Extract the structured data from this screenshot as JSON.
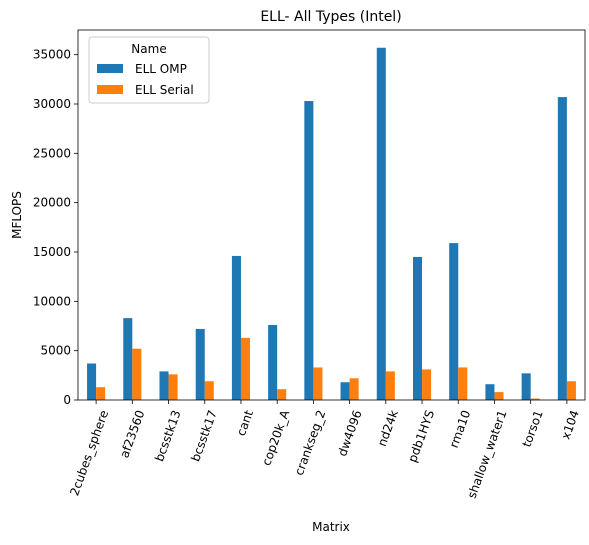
{
  "chart_data": {
    "type": "bar",
    "title": "ELL- All Types (Intel)",
    "xlabel": "Matrix",
    "ylabel": "MFLOPS",
    "ylim": [
      0,
      37500
    ],
    "yticks": [
      0,
      5000,
      10000,
      15000,
      20000,
      25000,
      30000,
      35000
    ],
    "grid": false,
    "legend": {
      "title": "Name",
      "placement": "top-left"
    },
    "categories": [
      "2cubes_sphere",
      "af23560",
      "bcsstk13",
      "bcsstk17",
      "cant",
      "cop20k_A",
      "crankseg_2",
      "dw4096",
      "nd24k",
      "pdb1HYS",
      "rma10",
      "shallow_water1",
      "torso1",
      "x104"
    ],
    "series": [
      {
        "name": "ELL OMP",
        "color": "#1f77b4",
        "values": [
          3700,
          8300,
          2900,
          7200,
          14600,
          7600,
          30300,
          1800,
          35700,
          14500,
          15900,
          1600,
          2700,
          30700
        ]
      },
      {
        "name": "ELL Serial",
        "color": "#ff7f0e",
        "values": [
          1300,
          5200,
          2600,
          1900,
          6300,
          1100,
          3300,
          2200,
          2900,
          3100,
          3300,
          800,
          150,
          1900
        ]
      }
    ]
  }
}
